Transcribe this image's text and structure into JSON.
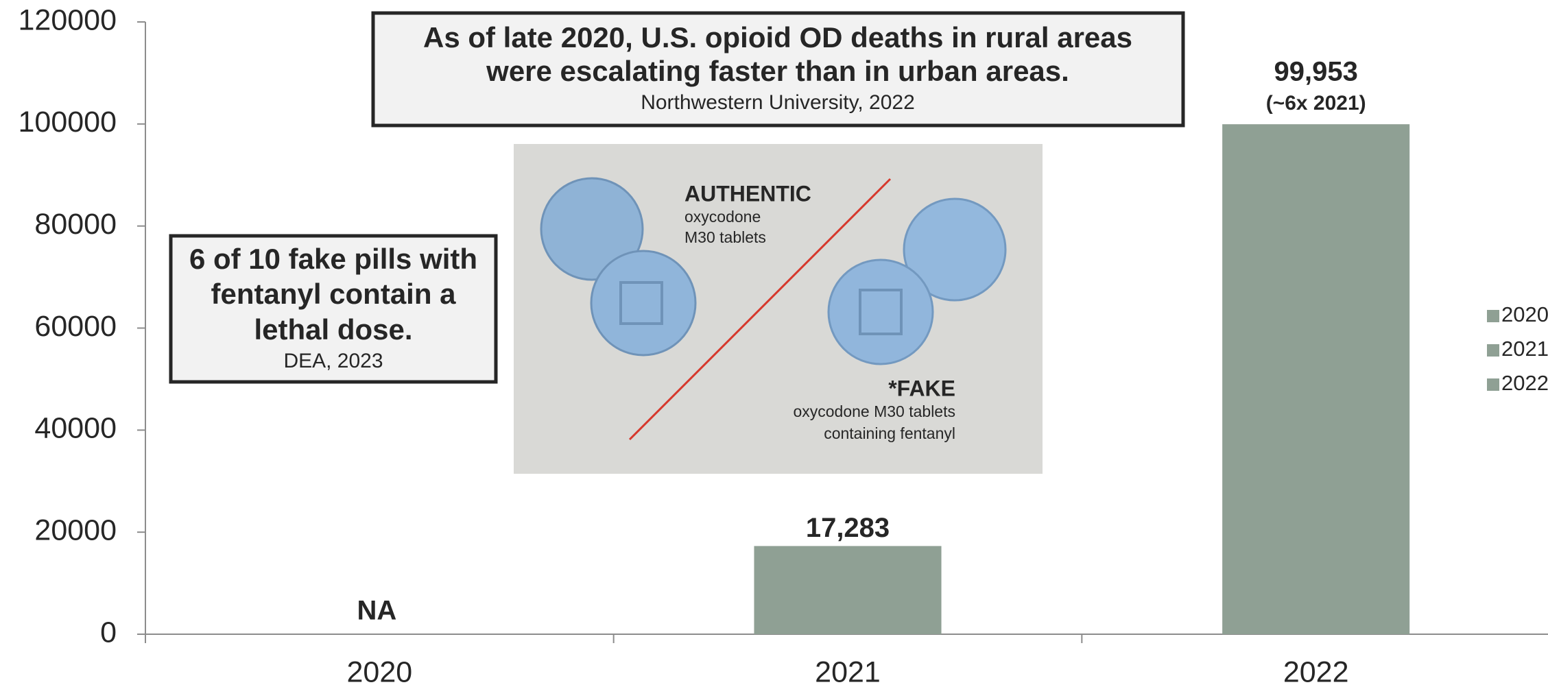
{
  "chart_data": {
    "type": "bar",
    "categories": [
      "2020",
      "2021",
      "2022"
    ],
    "values": [
      null,
      17283,
      99953
    ],
    "value_labels": [
      "NA",
      "17,283",
      "99,953"
    ],
    "value_note": "(~6x 2021)",
    "color": "#8fa094",
    "ylim": [
      0,
      120000
    ],
    "yticks": [
      0,
      20000,
      40000,
      60000,
      80000,
      100000,
      120000
    ],
    "legend": [
      "2020",
      "2021",
      "2022"
    ],
    "legend_position": "right",
    "annotations": [
      {
        "lines": [
          "As of late 2020, U.S. opioid OD deaths in rural areas",
          "were escalating faster than in urban areas."
        ],
        "source": "Northwestern University, 2022"
      },
      {
        "lines": [
          "6 of 10 fake pills with",
          "fentanyl contain a",
          "lethal dose."
        ],
        "source": "DEA, 2023"
      }
    ],
    "image_text": {
      "authentic_title": "AUTHENTIC",
      "authentic_lines": [
        "oxycodone",
        "M30 tablets"
      ],
      "fake_title": "*FAKE",
      "fake_lines": [
        "oxycodone M30 tablets",
        "containing fentanyl"
      ]
    }
  }
}
